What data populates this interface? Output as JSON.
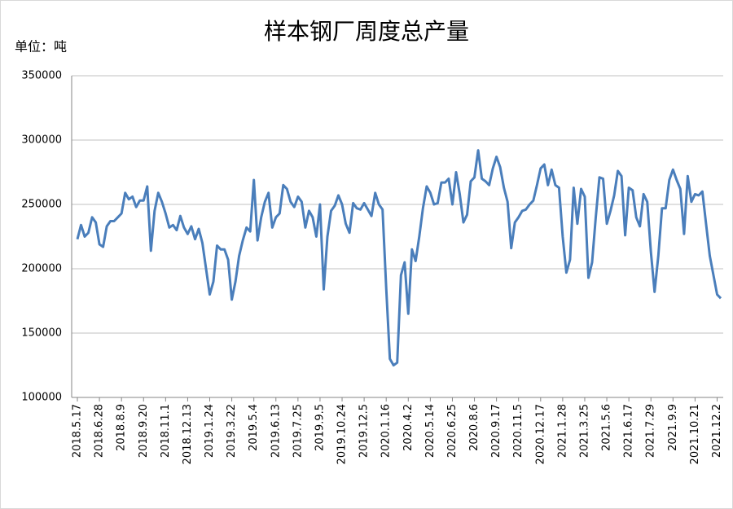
{
  "chart_data": {
    "type": "line",
    "title": "样本钢厂周度总产量",
    "unit_label": "单位：吨",
    "categories": [
      "2018.5.17",
      null,
      null,
      null,
      null,
      null,
      "2018.6.28",
      null,
      null,
      null,
      null,
      null,
      "2018.8.9",
      null,
      null,
      null,
      null,
      null,
      "2018.9.20",
      null,
      null,
      null,
      null,
      null,
      "2018.11.1",
      null,
      null,
      null,
      null,
      null,
      "2018.12.13",
      null,
      null,
      null,
      null,
      null,
      "2019.1.24",
      null,
      null,
      null,
      null,
      null,
      "2019.3.22",
      null,
      null,
      null,
      null,
      null,
      "2019.5.4",
      null,
      null,
      null,
      null,
      null,
      "2019.6.13",
      null,
      null,
      null,
      null,
      null,
      "2019.7.25",
      null,
      null,
      null,
      null,
      null,
      "2019.9.5",
      null,
      null,
      null,
      null,
      null,
      "2019.10.24",
      null,
      null,
      null,
      null,
      null,
      "2019.12.5",
      null,
      null,
      null,
      null,
      null,
      "2020.1.16",
      null,
      null,
      null,
      null,
      null,
      "2020.4.2",
      null,
      null,
      null,
      null,
      null,
      "2020.5.14",
      null,
      null,
      null,
      null,
      null,
      "2020.6.25",
      null,
      null,
      null,
      null,
      null,
      "2020.8.6",
      null,
      null,
      null,
      null,
      null,
      "2020.9.17",
      null,
      null,
      null,
      null,
      null,
      "2020.11.5",
      null,
      null,
      null,
      null,
      null,
      "2020.12.17",
      null,
      null,
      null,
      null,
      null,
      "2021.1.28",
      null,
      null,
      null,
      null,
      null,
      "2021.3.25",
      null,
      null,
      null,
      null,
      null,
      "2021.5.6",
      null,
      null,
      null,
      null,
      null,
      "2021.6.17",
      null,
      null,
      null,
      null,
      null,
      "2021.7.29",
      null,
      null,
      null,
      null,
      null,
      "2021.9.9",
      null,
      null,
      null,
      null,
      null,
      "2021.10.21",
      null,
      null,
      null,
      null,
      null,
      "2021.12.2",
      null
    ],
    "series": [
      {
        "name": "样本钢厂周度总产量",
        "color": "#4a7ebb",
        "values": [
          223000,
          234000,
          225000,
          228000,
          240000,
          236000,
          219000,
          217000,
          233000,
          237000,
          237000,
          240000,
          243000,
          259000,
          254000,
          256000,
          248000,
          253000,
          253000,
          264000,
          214000,
          245000,
          259000,
          252000,
          243000,
          232000,
          234000,
          230000,
          241000,
          232000,
          227000,
          233000,
          223000,
          231000,
          220000,
          200000,
          180000,
          190000,
          218000,
          215000,
          215000,
          207000,
          176000,
          190000,
          210000,
          222000,
          232000,
          229000,
          269000,
          222000,
          240000,
          252000,
          259000,
          232000,
          240000,
          243000,
          265000,
          262000,
          252000,
          248000,
          256000,
          252000,
          232000,
          245000,
          240000,
          225000,
          250000,
          184000,
          225000,
          245000,
          249000,
          257000,
          250000,
          235000,
          228000,
          251000,
          247000,
          246000,
          251000,
          246000,
          241000,
          259000,
          250000,
          246000,
          185000,
          130000,
          125000,
          127000,
          195000,
          205000,
          165000,
          215000,
          206000,
          225000,
          247000,
          264000,
          259000,
          250000,
          251000,
          267000,
          267000,
          270000,
          250000,
          275000,
          258000,
          236000,
          242000,
          268000,
          271000,
          292000,
          270000,
          268000,
          265000,
          278000,
          287000,
          279000,
          263000,
          252000,
          216000,
          236000,
          240000,
          245000,
          246000,
          250000,
          253000,
          265000,
          278000,
          281000,
          265000,
          277000,
          265000,
          263000,
          225000,
          197000,
          207000,
          263000,
          235000,
          262000,
          256000,
          193000,
          205000,
          240000,
          271000,
          270000,
          235000,
          245000,
          257000,
          276000,
          272000,
          226000,
          263000,
          261000,
          240000,
          233000,
          258000,
          252000,
          213000,
          182000,
          210000,
          247000,
          247000,
          269000,
          277000,
          269000,
          262000,
          227000,
          272000,
          252000,
          258000,
          257000,
          260000,
          235000,
          210000,
          195000,
          180000,
          177000
        ]
      }
    ],
    "ylim": [
      100000,
      350000
    ],
    "yticks": [
      100000,
      150000,
      200000,
      250000,
      300000,
      350000
    ],
    "grid": true
  }
}
